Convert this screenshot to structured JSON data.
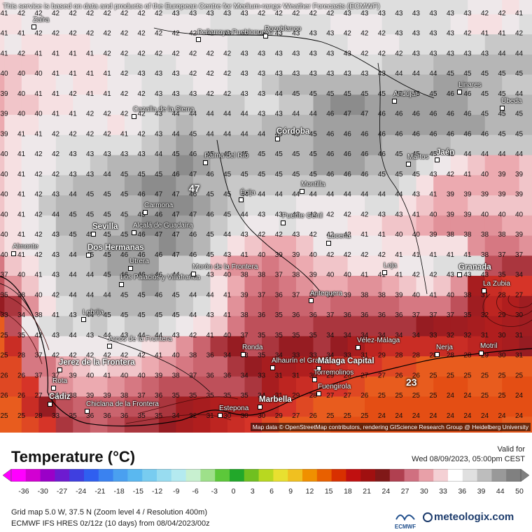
{
  "map": {
    "disclaimer": "This service is based on data and products of the European Centre for Medium-range Weather Forecasts (ECMWF)",
    "attribution": "Map data © OpenStreetMap contributors, rendering GIScience Research Group @ Heidelberg University",
    "grid_rows": [
      "41 42 42 42 42 42 42 42 42 42 43 43 43 43 43 42 42 42 42 42 43 43 43 43 43 43 43 43 42 42 41 42",
      "41 41 42 42 42 42 42 42 42 42 42 42 42 43 43 43 43 43 43 43 42 42 42 43 43 43 43 42 41 41 42 43",
      "41 42 41 41 41 41 42 42 42 42 42 42 42 42 43 43 43 43 43 43 43 42 42 42 43 43 43 43 43 44 44 44",
      "40 40 40 41 41 41 41 42 43 43 43 42 42 42 43 43 43 43 43 43 43 43 43 44 44 44 45 45 45 45 45 45",
      "39 40 41 41 42 41 41 42 42 43 43 43 42 42 43 43 44 45 45 45 45 45 45 45 45 45 46 46 45 45 44 44",
      "39 40 40 41 41 42 42 42 42 43 44 44 44 44 44 43 43 44 44 46 47 47 46 46 46 46 46 46 45 45 45 45",
      "39 41 41 42 42 42 42 41 42 43 44 45 44 44 44 44 45 45 45 46 46 46 46 46 46 46 46 46 46 45 45 45",
      "40 41 42 42 43 43 43 43 43 44 45 46 45 45 45 45 45 45 45 46 46 46 46 45 45 45 45 44 44 44 44 44",
      "40 41 42 42 43 43 44 45 45 45 46 47 46 45 45 45 45 45 45 46 46 46 45 45 45 43 42 41 40 39 39 40",
      "40 41 42 43 44 45 45 45 46 47 47 46 45 45 44 44 44 44 44 44 44 44 44 44 43 41 39 39 39 39 39 40",
      "40 41 42 44 45 45 45 45 45 46 47 47 46 45 44 43 43 43 42 42 42 42 43 43 41 40 39 39 40 40 40 40",
      "40 41 42 43 45 45 45 45 46 47 47 46 45 44 43 42 42 43 42 42 42 41 41 40 40 39 38 38 38 38 39 39",
      "40 41 42 43 44 45 45 46 46 46 47 46 45 43 41 40 39 39 40 42 42 42 42 41 41 41 41 41 38 37 37 38",
      "37 40 41 43 44 44 45 46 46 46 44 44 43 40 38 38 37 38 39 40 40 41 41 41 42 42 43 43 43 35 34 34",
      "35 38 40 42 44 44 44 45 45 46 45 44 44 41 39 37 36 37 38 39 39 38 38 39 40 41 40 38 31 28 27 27",
      "33 34 38 41 43 44 45 45 45 45 45 44 43 41 38 36 35 36 36 37 36 36 36 36 37 37 37 35 32 29 30 32",
      "25 35 42 43 44 43 44 43 44 44 43 42 41 40 37 35 35 35 35 34 34 34 34 34 34 33 32 32 31 30 31 32",
      "25 28 37 42 42 42 42 42 42 41 40 38 36 34 33 35 34 33 33 34 33 31 29 28 28 28 28 28 29 30 31 33",
      "26 26 37 37 39 40 41 40 40 39 38 37 36 36 34 33 31 31 30 29 28 27 27 26 26 25 25 25 25 25 25 25",
      "26 26 27 38 38 39 39 38 37 36 35 35 35 35 35 34 31 29 28 27 27 26 25 25 25 25 24 24 25 25 24 24",
      "25 25 28 33 35 36 36 36 35 35 34 32 31 30 30 30 29 27 26 25 25 25 24 24 24 24 24 24 24 24 24 24",
      "25 25 26 27 34 35 36 35 34 34 33 31 30 29 28 27 26 25 25 25 24 24 24 24 24 24 24 24 24 24 25 25"
    ],
    "cities": [
      {
        "name": "Zafra",
        "big": false
      },
      {
        "name": "Peñarroya-Pueblonuevo",
        "big": false
      },
      {
        "name": "Pozoblanco",
        "big": false
      },
      {
        "name": "Linares",
        "big": false
      },
      {
        "name": "Andújar",
        "big": false
      },
      {
        "name": "Úbeda",
        "big": false
      },
      {
        "name": "Cazalla de la Sierra",
        "big": false
      },
      {
        "name": "Córdoba",
        "big": true
      },
      {
        "name": "Martos",
        "big": false
      },
      {
        "name": "Jaén",
        "big": true
      },
      {
        "name": "Palma del Río",
        "big": false
      },
      {
        "name": "Écija",
        "big": false
      },
      {
        "name": "Montilla",
        "big": false
      },
      {
        "name": "Carmona",
        "big": false
      },
      {
        "name": "Sevilla",
        "big": true
      },
      {
        "name": "Alcalá de Guadaíra",
        "big": false
      },
      {
        "name": "Dos Hermanas",
        "big": true
      },
      {
        "name": "Puente Genil",
        "big": false
      },
      {
        "name": "Lucena",
        "big": false
      },
      {
        "name": "Almonte",
        "big": false
      },
      {
        "name": "Utrera",
        "big": false
      },
      {
        "name": "Los Palacios y Villafranca",
        "big": false
      },
      {
        "name": "Morón de la Frontera",
        "big": false
      },
      {
        "name": "Loja",
        "big": false
      },
      {
        "name": "Granada",
        "big": true
      },
      {
        "name": "La Zubia",
        "big": false
      },
      {
        "name": "Antequera",
        "big": false
      },
      {
        "name": "Lebrija",
        "big": false
      },
      {
        "name": "Arcos de la Frontera",
        "big": false
      },
      {
        "name": "Ronda",
        "big": false
      },
      {
        "name": "Vélez-Málaga",
        "big": false
      },
      {
        "name": "Nerja",
        "big": false
      },
      {
        "name": "Motril",
        "big": false
      },
      {
        "name": "Jerez de la Frontera",
        "big": true
      },
      {
        "name": "Alhaurín el Grande",
        "big": false
      },
      {
        "name": "Málaga Capital",
        "big": true
      },
      {
        "name": "Torremolinos",
        "big": false
      },
      {
        "name": "Fuengirola",
        "big": false
      },
      {
        "name": "Rota",
        "big": false
      },
      {
        "name": "Cádiz",
        "big": true
      },
      {
        "name": "Marbella",
        "big": true
      },
      {
        "name": "Chiclana de la Frontera",
        "big": false
      },
      {
        "name": "Estepona",
        "big": false
      }
    ],
    "max_marker": "47",
    "min_marker": "23"
  },
  "legend": {
    "title": "Temperature (°C)",
    "valid_label": "Valid for",
    "valid_date": "Wed 08/09/2023, 05:00pm CEST",
    "ticks": [
      "-36",
      "-30",
      "-27",
      "-24",
      "-21",
      "-18",
      "-15",
      "-12",
      "-9",
      "-6",
      "-3",
      "0",
      "3",
      "6",
      "9",
      "12",
      "15",
      "18",
      "21",
      "24",
      "27",
      "30",
      "33",
      "36",
      "39",
      "44",
      "50"
    ],
    "grid_info": "Grid map 5.0 W, 37.5 N (Zoom level 4 / Resolution 400m)",
    "model_info": "ECMWF IFS HRES 0z/12z (10 days) from 08/04/2023/00z",
    "ecmwf_label": "ECMWF",
    "brand": "meteologix.com",
    "colors": [
      "#ff00ff",
      "#d200d2",
      "#9a00c8",
      "#6d1bd0",
      "#3f3fe0",
      "#2f5ff0",
      "#3a82f0",
      "#4aa0f0",
      "#5ab8f0",
      "#78ccf0",
      "#98dcf0",
      "#b4eaf0",
      "#c8f0d0",
      "#9ee08a",
      "#5cc83a",
      "#22a82a",
      "#70c020",
      "#b8d820",
      "#e8e030",
      "#f0c020",
      "#f09000",
      "#e86000",
      "#d83000",
      "#c01010",
      "#a01010",
      "#801818",
      "#b04050",
      "#d07080",
      "#e8a0a8",
      "#f4d0d4",
      "#ffffff",
      "#e0e0e0",
      "#bdbdbd",
      "#999999",
      "#808080"
    ]
  }
}
